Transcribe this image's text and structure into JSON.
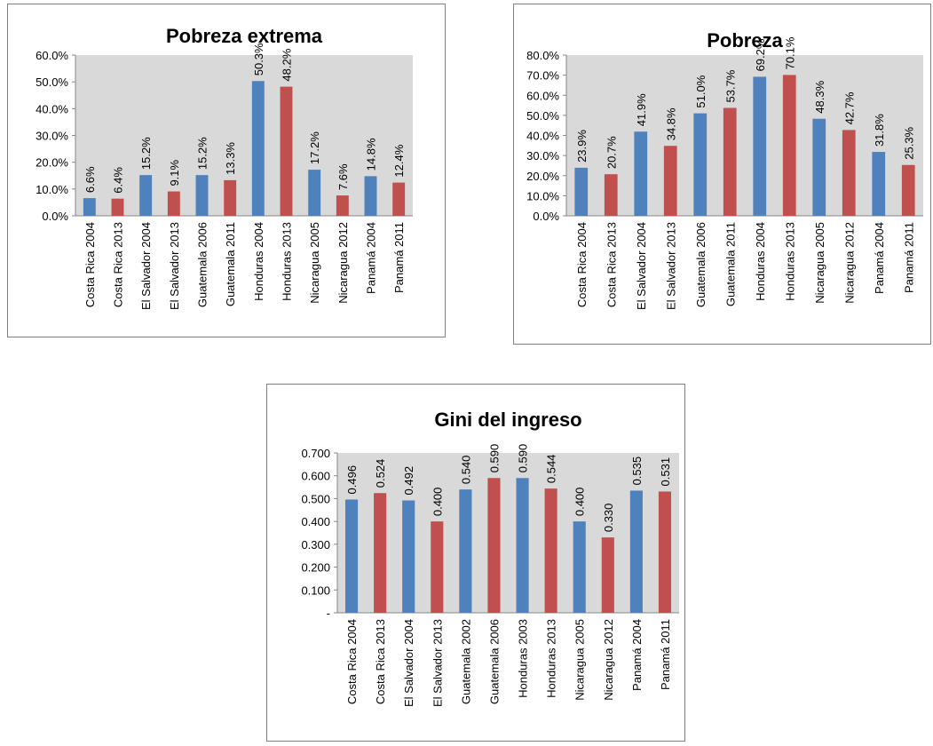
{
  "chart_data": [
    {
      "type": "bar",
      "title": "Pobreza extrema",
      "categories": [
        "Costa Rica 2004",
        "Costa Rica 2013",
        "El Salvador 2004",
        "El Salvador 2013",
        "Guatemala 2006",
        "Guatemala 2011",
        "Honduras 2004",
        "Honduras 2013",
        "Nicaragua 2005",
        "Nicaragua 2012",
        "Panamá 2004",
        "Panamá 2011"
      ],
      "values": [
        6.6,
        6.4,
        15.2,
        9.1,
        15.2,
        13.3,
        50.3,
        48.2,
        17.2,
        7.6,
        14.8,
        12.4
      ],
      "value_labels": [
        "6.6%",
        "6.4%",
        "15.2%",
        "9.1%",
        "15.2%",
        "13.3%",
        "50.3%",
        "48.2%",
        "17.2%",
        "7.6%",
        "14.8%",
        "12.4%"
      ],
      "colors": [
        "#4f81bd",
        "#c0504d",
        "#4f81bd",
        "#c0504d",
        "#4f81bd",
        "#c0504d",
        "#4f81bd",
        "#c0504d",
        "#4f81bd",
        "#c0504d",
        "#4f81bd",
        "#c0504d"
      ],
      "ylim": [
        0,
        60
      ],
      "yticks": [
        {
          "value": 0,
          "label": "0.0%"
        },
        {
          "value": 10,
          "label": "10.0%"
        },
        {
          "value": 20,
          "label": "20.0%"
        },
        {
          "value": 30,
          "label": "30.0%"
        },
        {
          "value": 40,
          "label": "40.0%"
        },
        {
          "value": 50,
          "label": "50.0%"
        },
        {
          "value": 60,
          "label": "60.0%"
        }
      ]
    },
    {
      "type": "bar",
      "title": "Pobreza",
      "categories": [
        "Costa Rica 2004",
        "Costa Rica 2013",
        "El Salvador 2004",
        "El Salvador 2013",
        "Guatemala 2006",
        "Guatemala 2011",
        "Honduras 2004",
        "Honduras 2013",
        "Nicaragua 2005",
        "Nicaragua 2012",
        "Panamá 2004",
        "Panamá 2011"
      ],
      "values": [
        23.9,
        20.7,
        41.9,
        34.8,
        51.0,
        53.7,
        69.2,
        70.1,
        48.3,
        42.7,
        31.8,
        25.3
      ],
      "value_labels": [
        "23.9%",
        "20.7%",
        "41.9%",
        "34.8%",
        "51.0%",
        "53.7%",
        "69.2%",
        "70.1%",
        "48.3%",
        "42.7%",
        "31.8%",
        "25.3%"
      ],
      "colors": [
        "#4f81bd",
        "#c0504d",
        "#4f81bd",
        "#c0504d",
        "#4f81bd",
        "#c0504d",
        "#4f81bd",
        "#c0504d",
        "#4f81bd",
        "#c0504d",
        "#4f81bd",
        "#c0504d"
      ],
      "ylim": [
        0,
        80
      ],
      "yticks": [
        {
          "value": 0,
          "label": "0.0%"
        },
        {
          "value": 10,
          "label": "10.0%"
        },
        {
          "value": 20,
          "label": "20.0%"
        },
        {
          "value": 30,
          "label": "30.0%"
        },
        {
          "value": 40,
          "label": "40.0%"
        },
        {
          "value": 50,
          "label": "50.0%"
        },
        {
          "value": 60,
          "label": "60.0%"
        },
        {
          "value": 70,
          "label": "70.0%"
        },
        {
          "value": 80,
          "label": "80.0%"
        }
      ]
    },
    {
      "type": "bar",
      "title": "Gini del ingreso",
      "categories": [
        "Costa Rica 2004",
        "Costa Rica 2013",
        "El Salvador 2004",
        "El Salvador 2013",
        "Guatemala 2002",
        "Guatemala 2006",
        "Honduras 2003",
        "Honduras 2013",
        "Nicaragua 2005",
        "Nicaragua 2012",
        "Panamá 2004",
        "Panamá 2011"
      ],
      "values": [
        0.496,
        0.524,
        0.492,
        0.4,
        0.54,
        0.59,
        0.59,
        0.544,
        0.4,
        0.33,
        0.535,
        0.531
      ],
      "value_labels": [
        "0.496",
        "0.524",
        "0.492",
        "0.400",
        "0.540",
        "0.590",
        "0.590",
        "0.544",
        "0.400",
        "0.330",
        "0.535",
        "0.531"
      ],
      "colors": [
        "#4f81bd",
        "#c0504d",
        "#4f81bd",
        "#c0504d",
        "#4f81bd",
        "#c0504d",
        "#4f81bd",
        "#c0504d",
        "#4f81bd",
        "#c0504d",
        "#4f81bd",
        "#c0504d"
      ],
      "ylim": [
        0,
        0.7
      ],
      "yticks": [
        {
          "value": 0,
          "label": "-"
        },
        {
          "value": 0.1,
          "label": "0.100"
        },
        {
          "value": 0.2,
          "label": "0.200"
        },
        {
          "value": 0.3,
          "label": "0.300"
        },
        {
          "value": 0.4,
          "label": "0.400"
        },
        {
          "value": 0.5,
          "label": "0.500"
        },
        {
          "value": 0.6,
          "label": "0.600"
        },
        {
          "value": 0.7,
          "label": "0.700"
        }
      ]
    }
  ]
}
